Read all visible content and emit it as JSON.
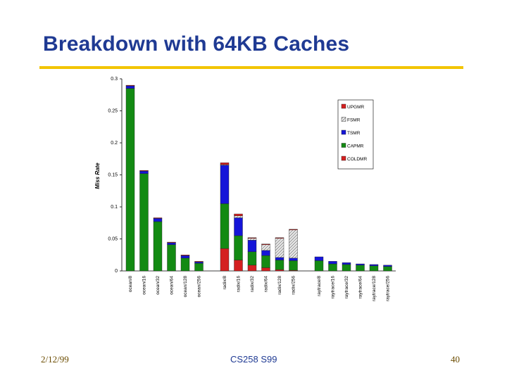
{
  "slide": {
    "title": "Breakdown with 64KB Caches",
    "date": "2/12/99",
    "course": "CS258 S99",
    "page": "40"
  },
  "colors": {
    "title": "#1f3a93",
    "rule": "#f2c400",
    "UPGMR": "#d42020",
    "FSMR": "#b5b5b5",
    "TSMR": "#1515d8",
    "CAPMR": "#138a13",
    "COLDMR": "#d42020"
  },
  "chart_data": {
    "type": "bar",
    "stacked": true,
    "ylabel": "Miss Rate",
    "ylim": [
      0,
      0.3
    ],
    "yticks": [
      0,
      0.05,
      0.1,
      0.15,
      0.2,
      0.25,
      0.3
    ],
    "ytick_labels": [
      "0",
      "0.05",
      "0.1",
      "0.15",
      "0.2",
      "0.25",
      "0.3"
    ],
    "legend_position": "top-right",
    "legend": [
      "UPGMR",
      "FSMR",
      "TSMR",
      "CAPMR",
      "COLDMR"
    ],
    "groups": [
      [
        "ocean/8",
        "ocean/16",
        "ocean/32",
        "ocean/64",
        "ocean/128",
        "ocean/256"
      ],
      [
        "radix/8",
        "radix/16",
        "radix/32",
        "radix/64",
        "radix/128",
        "radix/256"
      ],
      [
        "raytrace/8",
        "raytrace/16",
        "raytrace/32",
        "raytrace/64",
        "raytrace/128",
        "raytrace/256"
      ]
    ],
    "categories": [
      "ocean/8",
      "ocean/16",
      "ocean/32",
      "ocean/64",
      "ocean/128",
      "ocean/256",
      "radix/8",
      "radix/16",
      "radix/32",
      "radix/64",
      "radix/128",
      "radix/256",
      "raytrace/8",
      "raytrace/16",
      "raytrace/32",
      "raytrace/64",
      "raytrace/128",
      "raytrace/256"
    ],
    "series": [
      {
        "name": "COLDMR",
        "values": [
          0,
          0,
          0,
          0,
          0,
          0,
          0.035,
          0.017,
          0.009,
          0.005,
          0.002,
          0.001,
          0,
          0,
          0,
          0,
          0,
          0
        ]
      },
      {
        "name": "CAPMR",
        "values": [
          0.285,
          0.152,
          0.077,
          0.041,
          0.02,
          0.012,
          0.07,
          0.038,
          0.021,
          0.019,
          0.015,
          0.015,
          0.016,
          0.011,
          0.01,
          0.009,
          0.008,
          0.007
        ]
      },
      {
        "name": "TSMR",
        "values": [
          0.004,
          0.004,
          0.005,
          0.003,
          0.004,
          0.002,
          0.06,
          0.028,
          0.018,
          0.008,
          0.004,
          0.004,
          0.006,
          0.004,
          0.003,
          0.002,
          0.002,
          0.002
        ]
      },
      {
        "name": "FSMR",
        "values": [
          0,
          0,
          0,
          0,
          0,
          0,
          0.001,
          0.003,
          0.003,
          0.009,
          0.03,
          0.044,
          0,
          0,
          0,
          0,
          0,
          0
        ]
      },
      {
        "name": "UPGMR",
        "values": [
          0.001,
          0.001,
          0.001,
          0.001,
          0.001,
          0.001,
          0.003,
          0.003,
          0.001,
          0.001,
          0.001,
          0.001,
          0,
          0,
          0,
          0,
          0,
          0
        ]
      }
    ]
  }
}
